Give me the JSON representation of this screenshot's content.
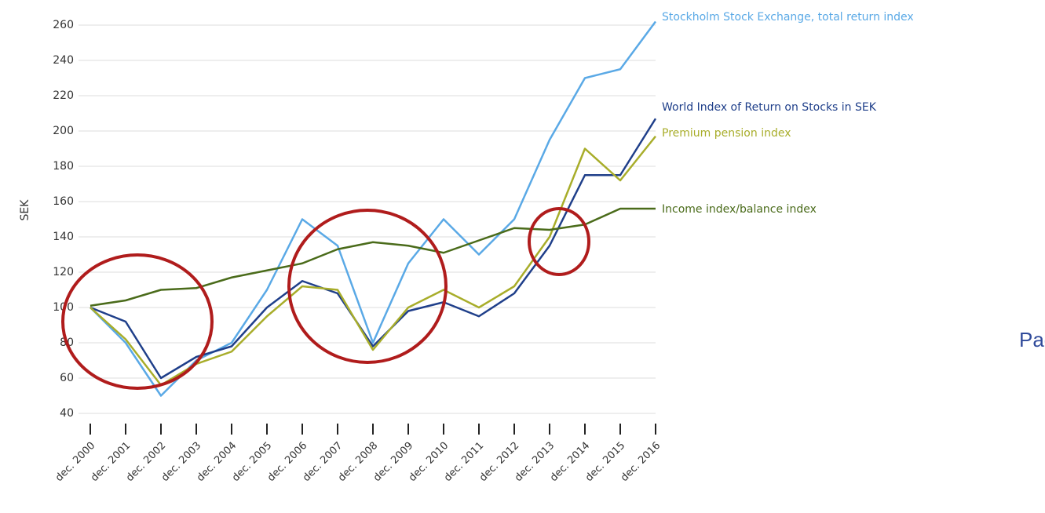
{
  "chart_data": {
    "type": "line",
    "y_label": "SEK",
    "annotation": "Pag",
    "categories": [
      "dec. 2000",
      "dec. 2001",
      "dec. 2002",
      "dec. 2003",
      "dec. 2004",
      "dec. 2005",
      "dec. 2006",
      "dec. 2007",
      "dec. 2008",
      "dec. 2009",
      "dec. 2010",
      "dec. 2011",
      "dec. 2012",
      "dec. 2013",
      "dec. 2014",
      "dec. 2015",
      "dec. 2016"
    ],
    "series": [
      {
        "name": "Stockholm Stock Exchange, total return index",
        "color": "#5aa9e6",
        "values": [
          100,
          80,
          50,
          70,
          80,
          110,
          150,
          135,
          80,
          125,
          150,
          130,
          150,
          195,
          230,
          235,
          262
        ]
      },
      {
        "name": "World Index of Return on Stocks in SEK",
        "color": "#1f3f8a",
        "values": [
          100,
          92,
          60,
          72,
          78,
          100,
          115,
          108,
          78,
          98,
          103,
          95,
          108,
          135,
          175,
          175,
          207
        ]
      },
      {
        "name": "Premium pension index",
        "color": "#a8ad2a",
        "values": [
          100,
          82,
          56,
          68,
          75,
          95,
          112,
          110,
          76,
          100,
          110,
          100,
          112,
          140,
          190,
          172,
          197
        ]
      },
      {
        "name": "Income index/balance index",
        "color": "#4a6b1a",
        "values": [
          101,
          104,
          110,
          111,
          117,
          121,
          125,
          133,
          137,
          135,
          131,
          138,
          145,
          144,
          147,
          156,
          156
        ]
      }
    ],
    "ylim": [
      40,
      260
    ],
    "yticks": [
      40,
      60,
      80,
      100,
      120,
      140,
      160,
      180,
      200,
      220,
      240,
      260
    ],
    "grid": true
  }
}
